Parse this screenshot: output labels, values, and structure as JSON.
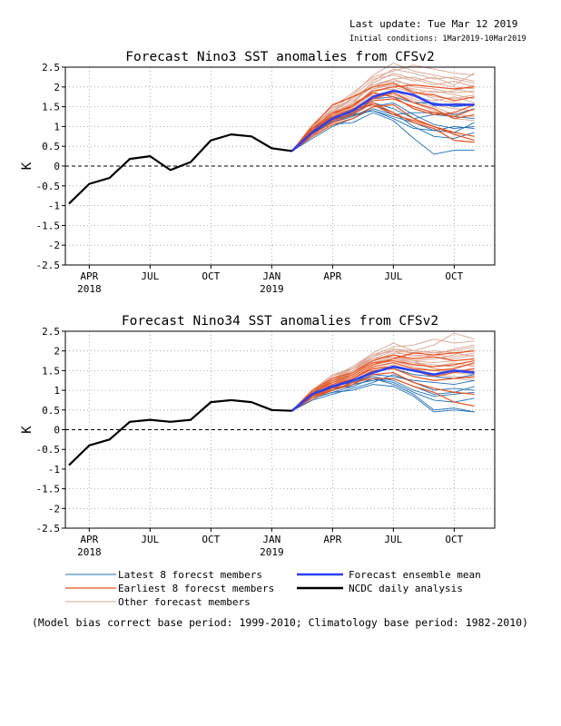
{
  "header": {
    "last_update": "Last update: Tue Mar 12 2019",
    "initial_conditions": "Initial conditions: 1Mar2019-10Mar2019"
  },
  "colors": {
    "latest": "#1f6fb5",
    "earliest": "#e8501e",
    "other": "#d9a38e",
    "mean": "#2b40f0",
    "analysis": "#000000"
  },
  "chart_data": [
    {
      "type": "line",
      "title": "Forecast Nino3 SST anomalies from CFSv2",
      "ylabel": "K",
      "ylim": [
        -2.5,
        2.5
      ],
      "yticks": [
        "-2.5",
        "-2",
        "-1.5",
        "-1",
        "-0.5",
        "0",
        "0.5",
        "1",
        "1.5",
        "2",
        "2.5"
      ],
      "xticks": [
        {
          "label": "APR",
          "year": "2018"
        },
        {
          "label": "JUL",
          "year": ""
        },
        {
          "label": "OCT",
          "year": ""
        },
        {
          "label": "JAN",
          "year": "2019"
        },
        {
          "label": "APR",
          "year": ""
        },
        {
          "label": "JUL",
          "year": ""
        },
        {
          "label": "OCT",
          "year": ""
        }
      ],
      "grid": true,
      "analysis": {
        "name": "NCDC daily analysis",
        "x": [
          0,
          1,
          2,
          3,
          4,
          5,
          6,
          7,
          8,
          9,
          10,
          11
        ],
        "y": [
          -0.95,
          -0.45,
          -0.3,
          0.18,
          0.25,
          -0.1,
          0.1,
          0.65,
          0.8,
          0.75,
          0.45,
          0.38
        ]
      },
      "ensemble_mean": {
        "name": "Forecast ensemble mean",
        "x": [
          11,
          12,
          13,
          14,
          15,
          16,
          17,
          18,
          19,
          20
        ],
        "y": [
          0.38,
          0.85,
          1.2,
          1.4,
          1.75,
          1.9,
          1.8,
          1.55,
          1.55,
          1.55
        ]
      },
      "members_latest": [
        [
          0.38,
          0.75,
          1.05,
          1.1,
          1.35,
          1.15,
          0.7,
          0.3,
          0.4,
          0.4
        ],
        [
          0.38,
          0.9,
          1.2,
          1.4,
          1.55,
          1.35,
          1.0,
          0.75,
          0.7,
          0.85
        ],
        [
          0.38,
          0.85,
          1.15,
          1.3,
          1.4,
          1.25,
          1.1,
          0.9,
          0.85,
          1.1
        ],
        [
          0.38,
          0.8,
          1.1,
          1.25,
          1.5,
          1.6,
          1.3,
          1.05,
          0.95,
          1.0
        ],
        [
          0.38,
          0.95,
          1.25,
          1.35,
          1.6,
          1.45,
          1.2,
          1.3,
          1.25,
          1.2
        ],
        [
          0.38,
          0.7,
          1.0,
          1.2,
          1.45,
          1.3,
          1.35,
          1.35,
          1.3,
          1.45
        ],
        [
          0.38,
          0.88,
          1.18,
          1.32,
          1.7,
          1.75,
          1.6,
          1.6,
          1.5,
          1.55
        ],
        [
          0.38,
          0.82,
          1.12,
          1.28,
          1.4,
          1.2,
          0.95,
          0.9,
          1.0,
          0.95
        ]
      ],
      "members_earliest": [
        [
          0.38,
          1.0,
          1.55,
          1.75,
          2.0,
          2.1,
          1.85,
          1.8,
          1.65,
          1.75
        ],
        [
          0.38,
          0.95,
          1.35,
          1.5,
          1.9,
          2.0,
          2.05,
          2.0,
          1.95,
          2.0
        ],
        [
          0.38,
          0.85,
          1.2,
          1.4,
          1.7,
          1.85,
          1.6,
          1.45,
          1.2,
          1.3
        ],
        [
          0.38,
          0.9,
          1.3,
          1.55,
          1.85,
          1.75,
          1.45,
          1.3,
          1.35,
          1.55
        ],
        [
          0.38,
          0.75,
          1.05,
          1.2,
          1.5,
          1.55,
          1.2,
          1.0,
          0.85,
          0.75
        ],
        [
          0.38,
          0.8,
          1.1,
          1.3,
          1.6,
          1.35,
          1.1,
          0.95,
          0.65,
          0.6
        ],
        [
          0.38,
          0.9,
          1.25,
          1.45,
          1.55,
          1.3,
          1.15,
          1.0,
          0.8,
          0.65
        ],
        [
          0.38,
          0.85,
          1.15,
          1.35,
          1.65,
          1.7,
          1.5,
          1.35,
          1.25,
          1.45
        ]
      ],
      "members_other": [
        [
          0.38,
          0.95,
          1.45,
          1.8,
          2.3,
          2.6,
          2.4,
          2.3,
          2.2,
          2.1
        ],
        [
          0.38,
          1.05,
          1.5,
          1.85,
          2.25,
          2.4,
          2.55,
          2.45,
          2.35,
          2.3
        ],
        [
          0.38,
          0.9,
          1.4,
          1.7,
          2.1,
          2.35,
          2.2,
          2.05,
          2.15,
          2.0
        ],
        [
          0.38,
          0.85,
          1.3,
          1.6,
          2.05,
          2.2,
          2.0,
          1.95,
          1.85,
          1.9
        ],
        [
          0.38,
          0.95,
          1.35,
          1.75,
          2.2,
          2.3,
          2.15,
          2.25,
          2.05,
          2.35
        ],
        [
          0.38,
          0.8,
          1.25,
          1.55,
          1.9,
          2.0,
          1.85,
          1.9,
          1.8,
          1.7
        ],
        [
          0.38,
          0.9,
          1.3,
          1.5,
          1.95,
          2.1,
          1.9,
          1.75,
          1.7,
          1.8
        ],
        [
          0.38,
          1.0,
          1.4,
          1.65,
          2.0,
          2.2,
          2.25,
          2.1,
          2.0,
          1.95
        ],
        [
          0.38,
          0.75,
          1.2,
          1.45,
          1.85,
          2.05,
          1.9,
          1.7,
          1.6,
          1.55
        ],
        [
          0.38,
          0.85,
          1.25,
          1.5,
          1.9,
          1.95,
          1.75,
          1.65,
          1.75,
          1.6
        ],
        [
          0.38,
          0.95,
          1.35,
          1.6,
          2.15,
          2.45,
          2.35,
          2.2,
          2.25,
          2.15
        ],
        [
          0.38,
          0.9,
          1.3,
          1.55,
          1.8,
          1.9,
          1.7,
          1.55,
          1.45,
          1.4
        ],
        [
          0.38,
          0.8,
          1.2,
          1.45,
          1.75,
          1.85,
          1.65,
          1.5,
          1.3,
          1.25
        ],
        [
          0.38,
          0.85,
          1.25,
          1.5,
          1.95,
          2.05,
          1.95,
          1.85,
          1.9,
          2.05
        ],
        [
          0.38,
          0.9,
          1.35,
          1.6,
          1.85,
          1.8,
          1.6,
          1.4,
          1.2,
          1.15
        ],
        [
          0.38,
          1.0,
          1.45,
          1.7,
          2.05,
          2.15,
          2.05,
          2.0,
          1.95,
          1.85
        ]
      ]
    },
    {
      "type": "line",
      "title": "Forecast Nino34 SST anomalies from CFSv2",
      "ylabel": "K",
      "ylim": [
        -2.5,
        2.5
      ],
      "yticks": [
        "-2.5",
        "-2",
        "-1.5",
        "-1",
        "-0.5",
        "0",
        "0.5",
        "1",
        "1.5",
        "2",
        "2.5"
      ],
      "xticks": [
        {
          "label": "APR",
          "year": "2018"
        },
        {
          "label": "JUL",
          "year": ""
        },
        {
          "label": "OCT",
          "year": ""
        },
        {
          "label": "JAN",
          "year": "2019"
        },
        {
          "label": "APR",
          "year": ""
        },
        {
          "label": "JUL",
          "year": ""
        },
        {
          "label": "OCT",
          "year": ""
        }
      ],
      "grid": true,
      "analysis": {
        "name": "NCDC daily analysis",
        "x": [
          0,
          1,
          2,
          3,
          4,
          5,
          6,
          7,
          8,
          9,
          10,
          11
        ],
        "y": [
          -0.9,
          -0.4,
          -0.25,
          0.2,
          0.25,
          0.2,
          0.25,
          0.7,
          0.75,
          0.7,
          0.5,
          0.48
        ]
      },
      "ensemble_mean": {
        "name": "Forecast ensemble mean",
        "x": [
          11,
          12,
          13,
          14,
          15,
          16,
          17,
          18,
          19,
          20
        ],
        "y": [
          0.48,
          0.9,
          1.1,
          1.25,
          1.45,
          1.6,
          1.5,
          1.4,
          1.5,
          1.45
        ]
      },
      "members_latest": [
        [
          0.48,
          0.8,
          0.95,
          1.0,
          1.15,
          1.1,
          0.85,
          0.45,
          0.5,
          0.45
        ],
        [
          0.48,
          0.9,
          1.05,
          1.1,
          1.3,
          1.2,
          0.95,
          0.75,
          0.7,
          0.8
        ],
        [
          0.48,
          0.85,
          1.0,
          1.15,
          1.25,
          1.3,
          1.1,
          0.9,
          0.95,
          1.1
        ],
        [
          0.48,
          0.75,
          0.9,
          1.05,
          1.2,
          1.4,
          1.2,
          1.0,
          1.05,
          1.0
        ],
        [
          0.48,
          0.95,
          1.1,
          1.2,
          1.4,
          1.35,
          1.25,
          1.2,
          1.15,
          1.25
        ],
        [
          0.48,
          0.85,
          1.05,
          1.15,
          1.5,
          1.55,
          1.4,
          1.35,
          1.3,
          1.4
        ],
        [
          0.48,
          0.9,
          1.1,
          1.2,
          1.35,
          1.25,
          1.0,
          0.85,
          0.9,
          0.95
        ],
        [
          0.48,
          0.8,
          0.95,
          1.1,
          1.3,
          1.15,
          0.9,
          0.5,
          0.55,
          0.45
        ]
      ],
      "members_earliest": [
        [
          0.48,
          1.0,
          1.3,
          1.45,
          1.75,
          1.9,
          1.8,
          1.85,
          1.75,
          1.8
        ],
        [
          0.48,
          0.95,
          1.2,
          1.35,
          1.65,
          1.8,
          1.95,
          1.9,
          1.95,
          2.0
        ],
        [
          0.48,
          0.9,
          1.1,
          1.3,
          1.55,
          1.6,
          1.5,
          1.35,
          1.45,
          1.55
        ],
        [
          0.48,
          0.85,
          1.05,
          1.25,
          1.5,
          1.55,
          1.35,
          1.25,
          1.3,
          1.35
        ],
        [
          0.48,
          0.8,
          1.0,
          1.15,
          1.4,
          1.45,
          1.2,
          1.05,
          0.95,
          0.9
        ],
        [
          0.48,
          0.85,
          1.0,
          1.2,
          1.3,
          1.3,
          1.1,
          0.95,
          0.7,
          0.6
        ],
        [
          0.48,
          0.9,
          1.15,
          1.3,
          1.6,
          1.7,
          1.55,
          1.5,
          1.55,
          1.7
        ],
        [
          0.48,
          0.95,
          1.25,
          1.4,
          1.7,
          1.75,
          1.65,
          1.6,
          1.65,
          1.75
        ]
      ],
      "members_other": [
        [
          0.48,
          0.95,
          1.35,
          1.6,
          1.95,
          2.2,
          2.0,
          2.15,
          2.45,
          2.3
        ],
        [
          0.48,
          1.0,
          1.4,
          1.55,
          1.9,
          2.1,
          2.15,
          2.3,
          2.2,
          2.25
        ],
        [
          0.48,
          0.9,
          1.3,
          1.5,
          1.8,
          2.0,
          1.85,
          1.9,
          2.05,
          2.15
        ],
        [
          0.48,
          0.85,
          1.25,
          1.45,
          1.75,
          1.9,
          1.75,
          1.8,
          1.9,
          2.05
        ],
        [
          0.48,
          0.95,
          1.35,
          1.55,
          1.85,
          2.05,
          1.95,
          2.0,
          1.95,
          1.85
        ],
        [
          0.48,
          0.8,
          1.15,
          1.4,
          1.7,
          1.8,
          1.65,
          1.6,
          1.7,
          1.6
        ],
        [
          0.48,
          0.85,
          1.2,
          1.45,
          1.8,
          1.85,
          1.7,
          1.55,
          1.5,
          1.55
        ],
        [
          0.48,
          0.9,
          1.25,
          1.5,
          1.75,
          1.95,
          1.9,
          1.85,
          1.8,
          1.9
        ],
        [
          0.48,
          0.75,
          1.05,
          1.3,
          1.6,
          1.7,
          1.55,
          1.4,
          1.35,
          1.3
        ],
        [
          0.48,
          0.85,
          1.15,
          1.35,
          1.65,
          1.75,
          1.6,
          1.5,
          1.45,
          1.4
        ],
        [
          0.48,
          0.95,
          1.3,
          1.5,
          1.85,
          2.05,
          2.0,
          1.95,
          2.0,
          2.1
        ],
        [
          0.48,
          0.9,
          1.2,
          1.4,
          1.7,
          1.8,
          1.7,
          1.65,
          1.6,
          1.65
        ],
        [
          0.48,
          0.8,
          1.1,
          1.3,
          1.55,
          1.65,
          1.5,
          1.35,
          1.3,
          1.25
        ],
        [
          0.48,
          0.85,
          1.2,
          1.45,
          1.7,
          1.85,
          1.75,
          1.7,
          1.75,
          1.8
        ],
        [
          0.48,
          0.95,
          1.3,
          1.55,
          1.8,
          1.9,
          1.75,
          1.55,
          1.45,
          1.5
        ],
        [
          0.48,
          1.0,
          1.35,
          1.6,
          1.9,
          2.0,
          1.95,
          1.9,
          1.85,
          1.95
        ]
      ]
    }
  ],
  "legend": {
    "latest": "Latest 8 forecst members",
    "earliest": "Earliest 8 forecst members",
    "other": "Other forecast members",
    "mean": "Forecast ensemble mean",
    "analysis": "NCDC daily analysis"
  },
  "footnote": "(Model bias correct base period: 1999-2010; Climatology base period: 1982-2010)"
}
